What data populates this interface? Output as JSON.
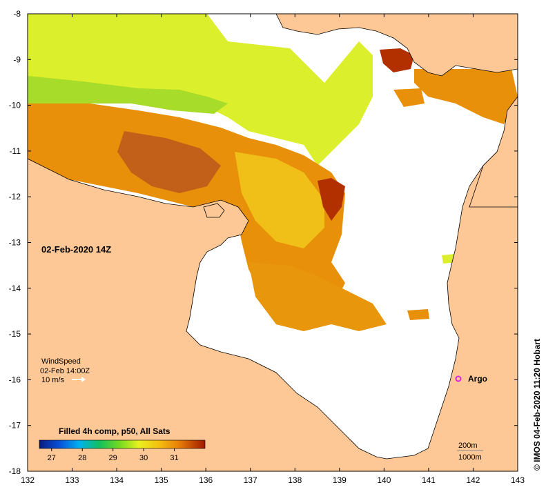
{
  "map": {
    "timestamp": "02-Feb-2020 14Z",
    "credit": "© IMOS 04-Feb-2020 11:20 Hobart",
    "argo_label": "Argo",
    "x_ticks": [
      "132",
      "133",
      "134",
      "135",
      "136",
      "137",
      "138",
      "139",
      "140",
      "141",
      "142",
      "143"
    ],
    "y_ticks": [
      "-8",
      "-9",
      "-10",
      "-11",
      "-12",
      "-13",
      "-14",
      "-15",
      "-16",
      "-17",
      "-18"
    ],
    "lon_range": [
      132,
      143
    ],
    "lat_range": [
      -18,
      -8
    ]
  },
  "wind": {
    "title": "WindSpeed",
    "time": "02-Feb 14:00Z",
    "scale": "10 m/s"
  },
  "colorbar": {
    "title": "Filled 4h comp, p50, All Sats",
    "ticks": [
      "27",
      "28",
      "29",
      "30",
      "31"
    ],
    "min": 26.6,
    "max": 32.0
  },
  "scale": {
    "contour1": "200m",
    "contour2": "1000m"
  },
  "colors": {
    "land": "#fdc896",
    "sea_no_data": "#ffffff",
    "warm_dark": "#b83b00",
    "warm": "#e8900a",
    "medium": "#f0c018",
    "cool": "#d9ee2a",
    "argo": "#e020e0"
  }
}
